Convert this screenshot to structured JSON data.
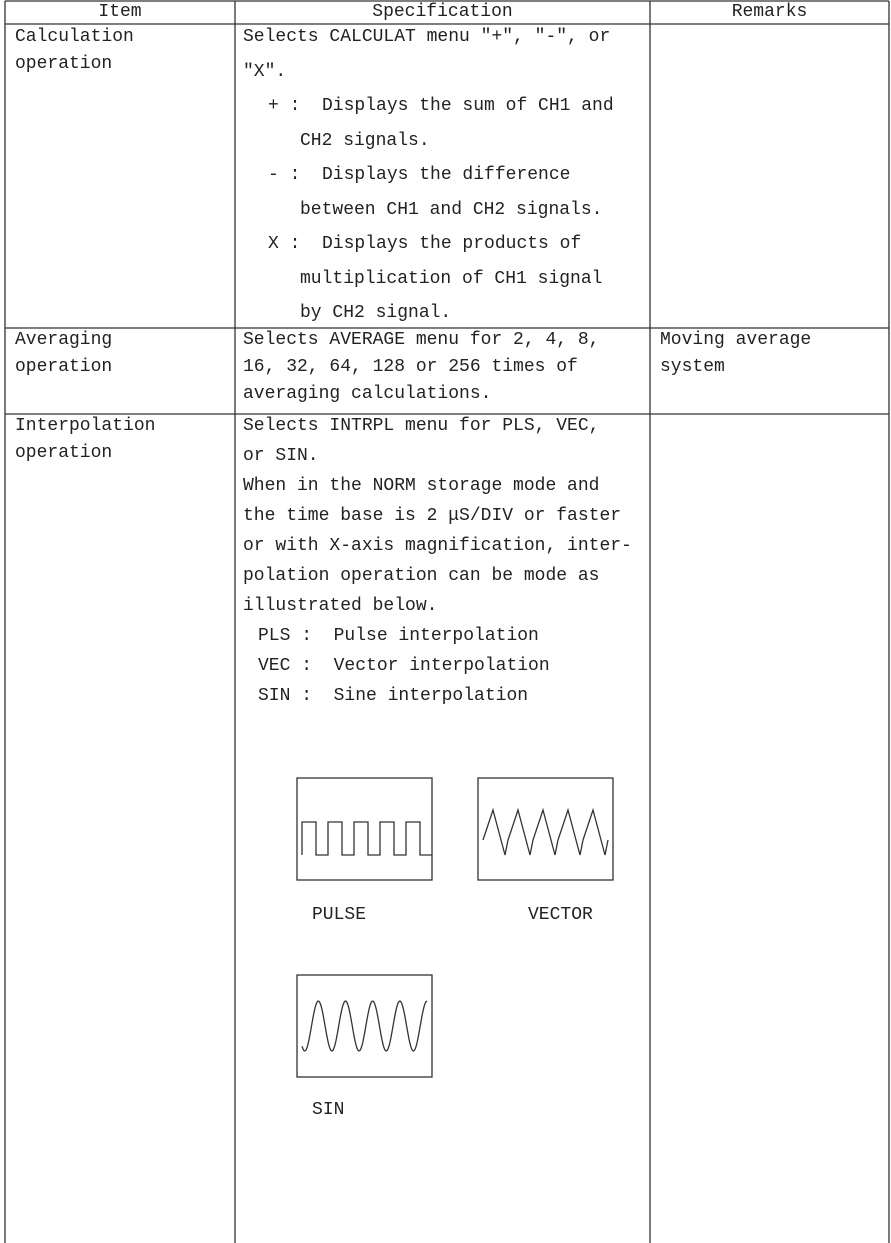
{
  "table": {
    "columns": [
      "Item",
      "Specification",
      "Remarks"
    ],
    "rows": [
      {
        "item": [
          "Calculation",
          "operation"
        ],
        "specification": [
          "Selects CALCULAT menu \"+\", \"-\", or",
          "\"X\".",
          "+ :  Displays the sum of CH1 and",
          "CH2 signals.",
          "- :  Displays the difference",
          "between CH1 and CH2 signals.",
          "X :  Displays the products of",
          "multiplication of CH1 signal",
          "by CH2 signal."
        ],
        "remarks": []
      },
      {
        "item": [
          "Averaging",
          "operation"
        ],
        "specification": [
          "Selects AVERAGE menu for 2, 4, 8,",
          "16, 32, 64, 128 or 256 times of",
          "averaging calculations."
        ],
        "remarks": [
          "Moving average",
          "system"
        ]
      },
      {
        "item": [
          "Interpolation",
          "operation"
        ],
        "specification": [
          "Selects INTRPL menu for PLS, VEC,",
          "or SIN.",
          "When in the NORM storage mode and",
          "the time base is 2 μS/DIV or faster",
          "or with X-axis magnification, inter-",
          "polation operation can be mode as",
          "illustrated below.",
          "PLS :  Pulse interpolation",
          "VEC :  Vector interpolation",
          "SIN :  Sine interpolation"
        ],
        "remarks": []
      }
    ]
  },
  "figures": {
    "labels": [
      "PULSE",
      "VECTOR",
      "SIN"
    ]
  }
}
